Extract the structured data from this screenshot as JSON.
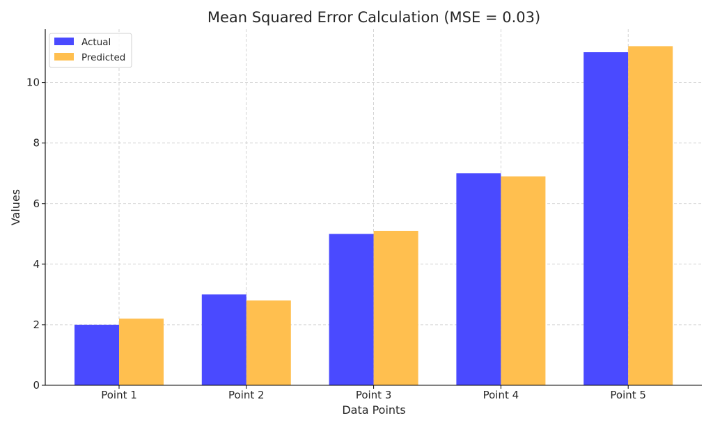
{
  "chart_data": {
    "type": "bar",
    "title": "Mean Squared Error Calculation (MSE = 0.03)",
    "xlabel": "Data Points",
    "ylabel": "Values",
    "categories": [
      "Point 1",
      "Point 2",
      "Point 3",
      "Point 4",
      "Point 5"
    ],
    "series": [
      {
        "name": "Actual",
        "values": [
          2,
          3,
          5,
          7,
          11
        ],
        "color": "#4a4aff"
      },
      {
        "name": "Predicted",
        "values": [
          2.2,
          2.8,
          5.1,
          6.9,
          11.2
        ],
        "color": "#ffbf4f"
      }
    ],
    "ylim": [
      0,
      11.76
    ],
    "yticks": [
      0,
      2,
      4,
      6,
      8,
      10
    ],
    "grid": true,
    "legend_position": "top-left"
  }
}
